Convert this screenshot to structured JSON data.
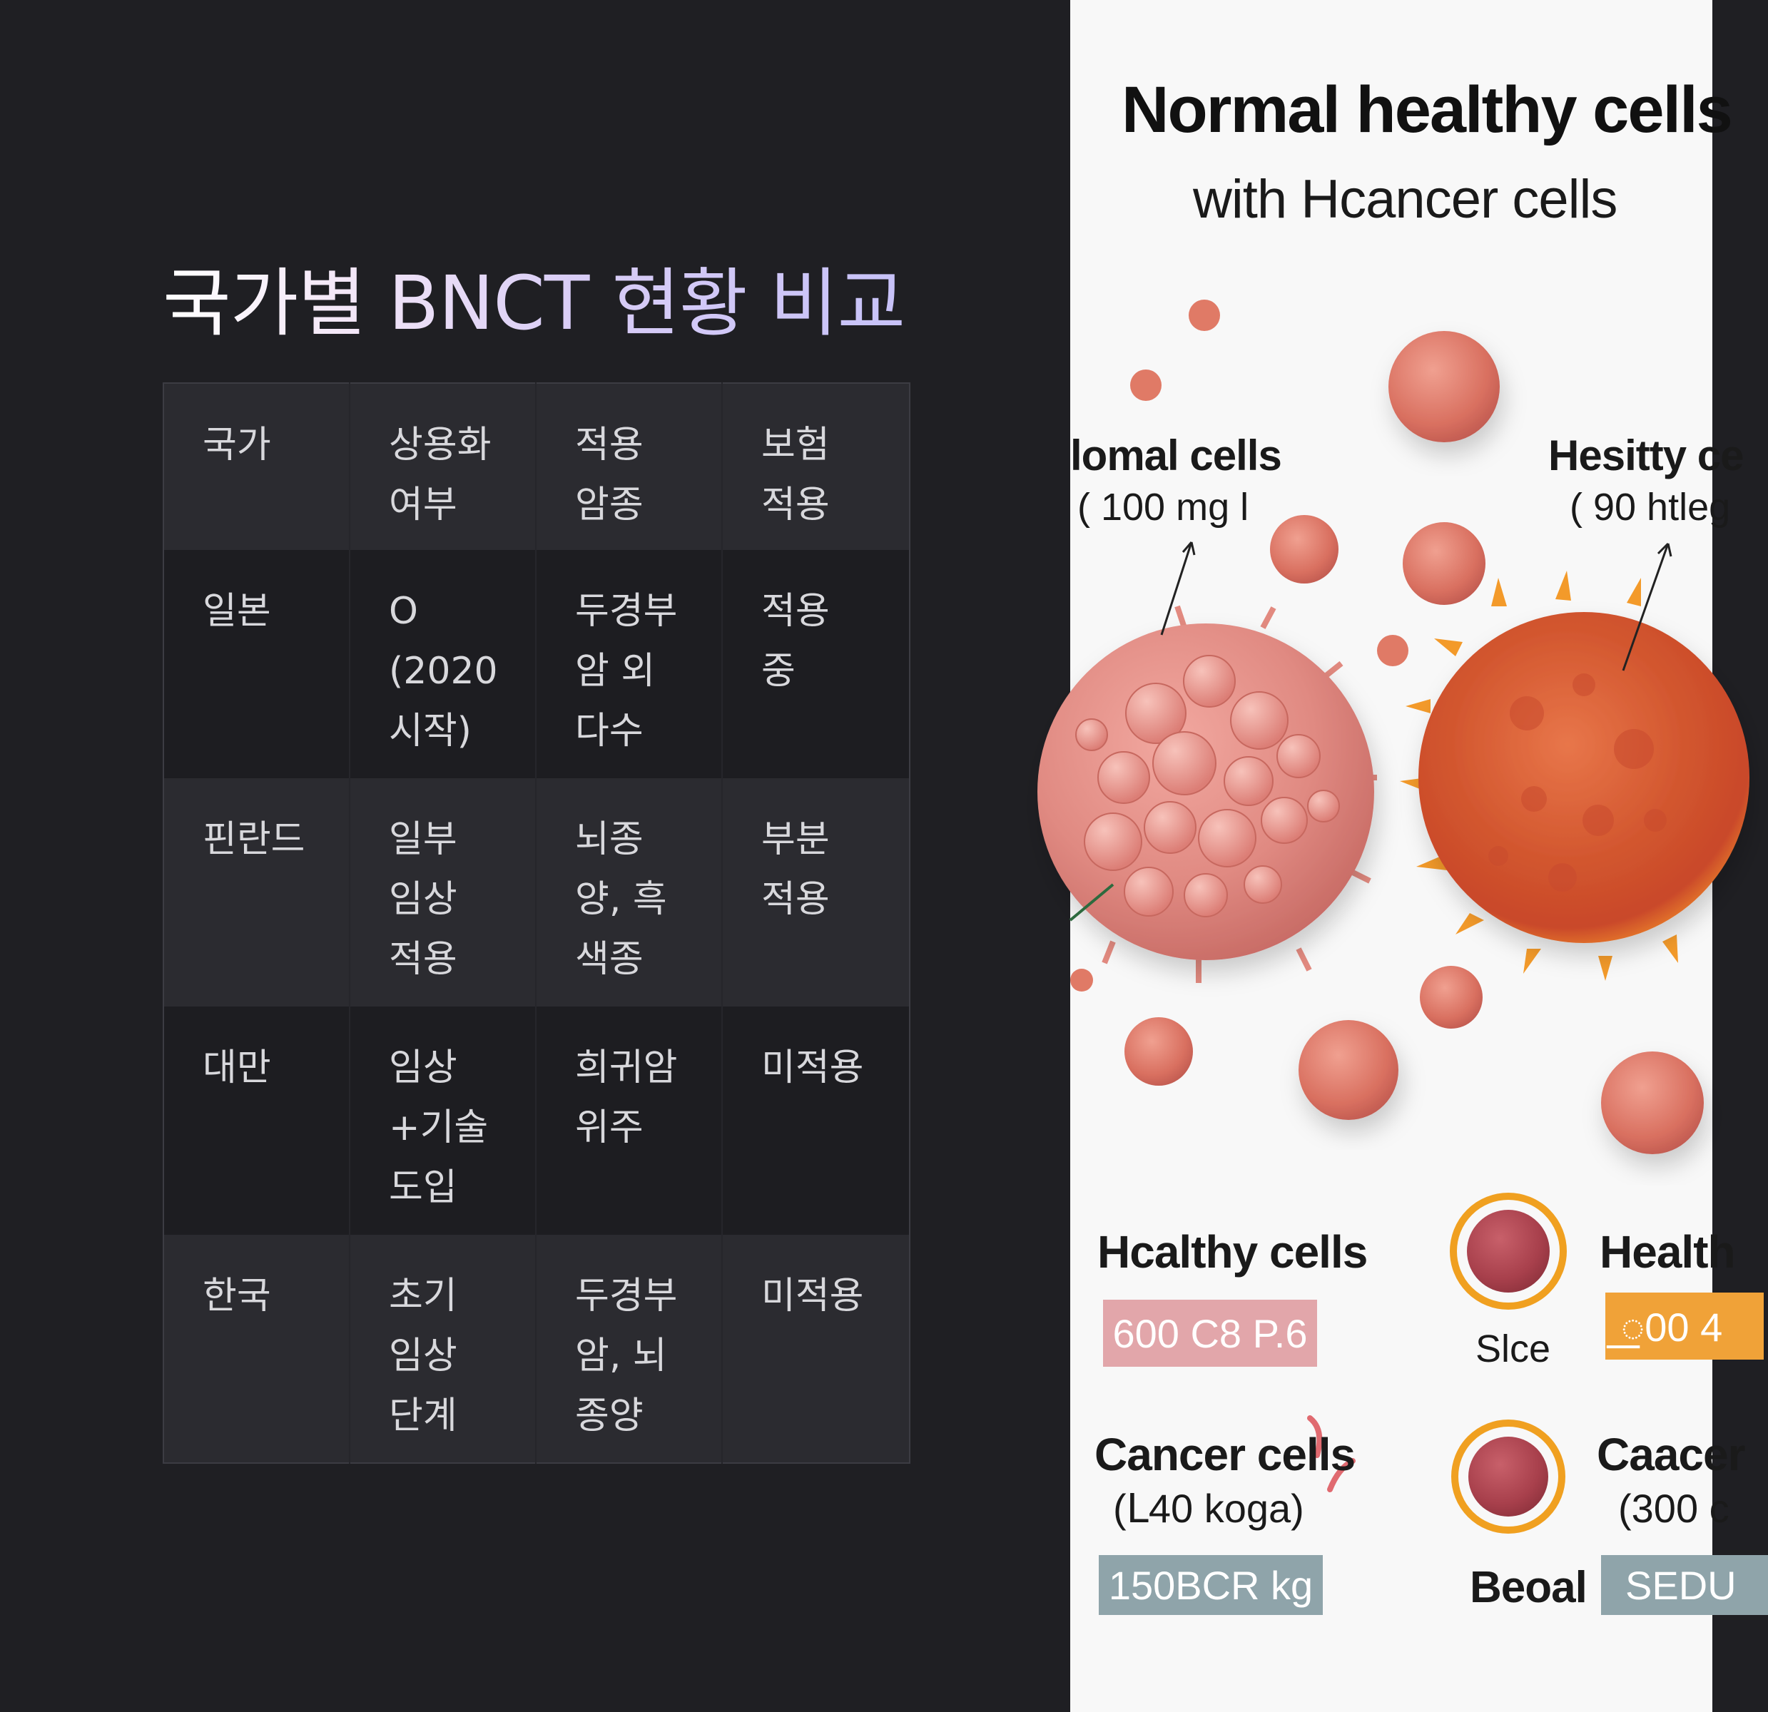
{
  "left": {
    "title": "국가별 BNCT 현황 비교",
    "table": {
      "headers": [
        [
          "국가"
        ],
        [
          "상용화",
          "여부"
        ],
        [
          "적용",
          "암종"
        ],
        [
          "보험",
          "적용"
        ]
      ],
      "rows": [
        [
          [
            "일본"
          ],
          [
            "O",
            "(2020",
            "시작)"
          ],
          [
            "두경부",
            "암 외",
            "다수"
          ],
          [
            "적용",
            "중"
          ]
        ],
        [
          [
            "핀란드"
          ],
          [
            "일부",
            "임상",
            "적용"
          ],
          [
            "뇌종",
            "양, 흑",
            "색종"
          ],
          [
            "부분",
            "적용"
          ]
        ],
        [
          [
            "대만"
          ],
          [
            "임상",
            "+기술",
            "도입"
          ],
          [
            "희귀암",
            "위주"
          ],
          [
            "미적용"
          ]
        ],
        [
          [
            "한국"
          ],
          [
            "초기",
            "임상",
            "단계"
          ],
          [
            "두경부",
            "암, 뇌",
            "종양"
          ],
          [
            "미적용"
          ]
        ]
      ]
    }
  },
  "right": {
    "title": "Normal healthy cells",
    "subtitle": "with Hcancer cells",
    "label_left_cells": "lomal cells",
    "label_left_value": "( 100 mg l",
    "label_right_cells": "Hesitty ce",
    "label_right_value": "( 90 htleg",
    "legend": {
      "healthy_title": "Hcalthy cells",
      "healthy_tag": "600 C8 P.6",
      "ring1_caption": "Slce",
      "healthy2_title": "Health",
      "healthy2_tag": "꯭00 4",
      "cancer_title": "Cancer cells",
      "cancer_sub": "(ᒪ40 koga)",
      "cancer_tag": "150BCR kg",
      "ring2_caption": "Beoal",
      "cancer2_title": "Caacer",
      "cancer2_sub": "(300 c",
      "cancer2_tag": "SEDU"
    },
    "colors": {
      "pink_tag": "#e2a6aa",
      "orange_tag": "#f0a238",
      "slate_tag": "#8fa4aa",
      "ring": "#f0a020"
    },
    "icons": [
      "large-normal-cell-icon",
      "large-cancer-cell-icon",
      "small-cell-icons"
    ]
  }
}
